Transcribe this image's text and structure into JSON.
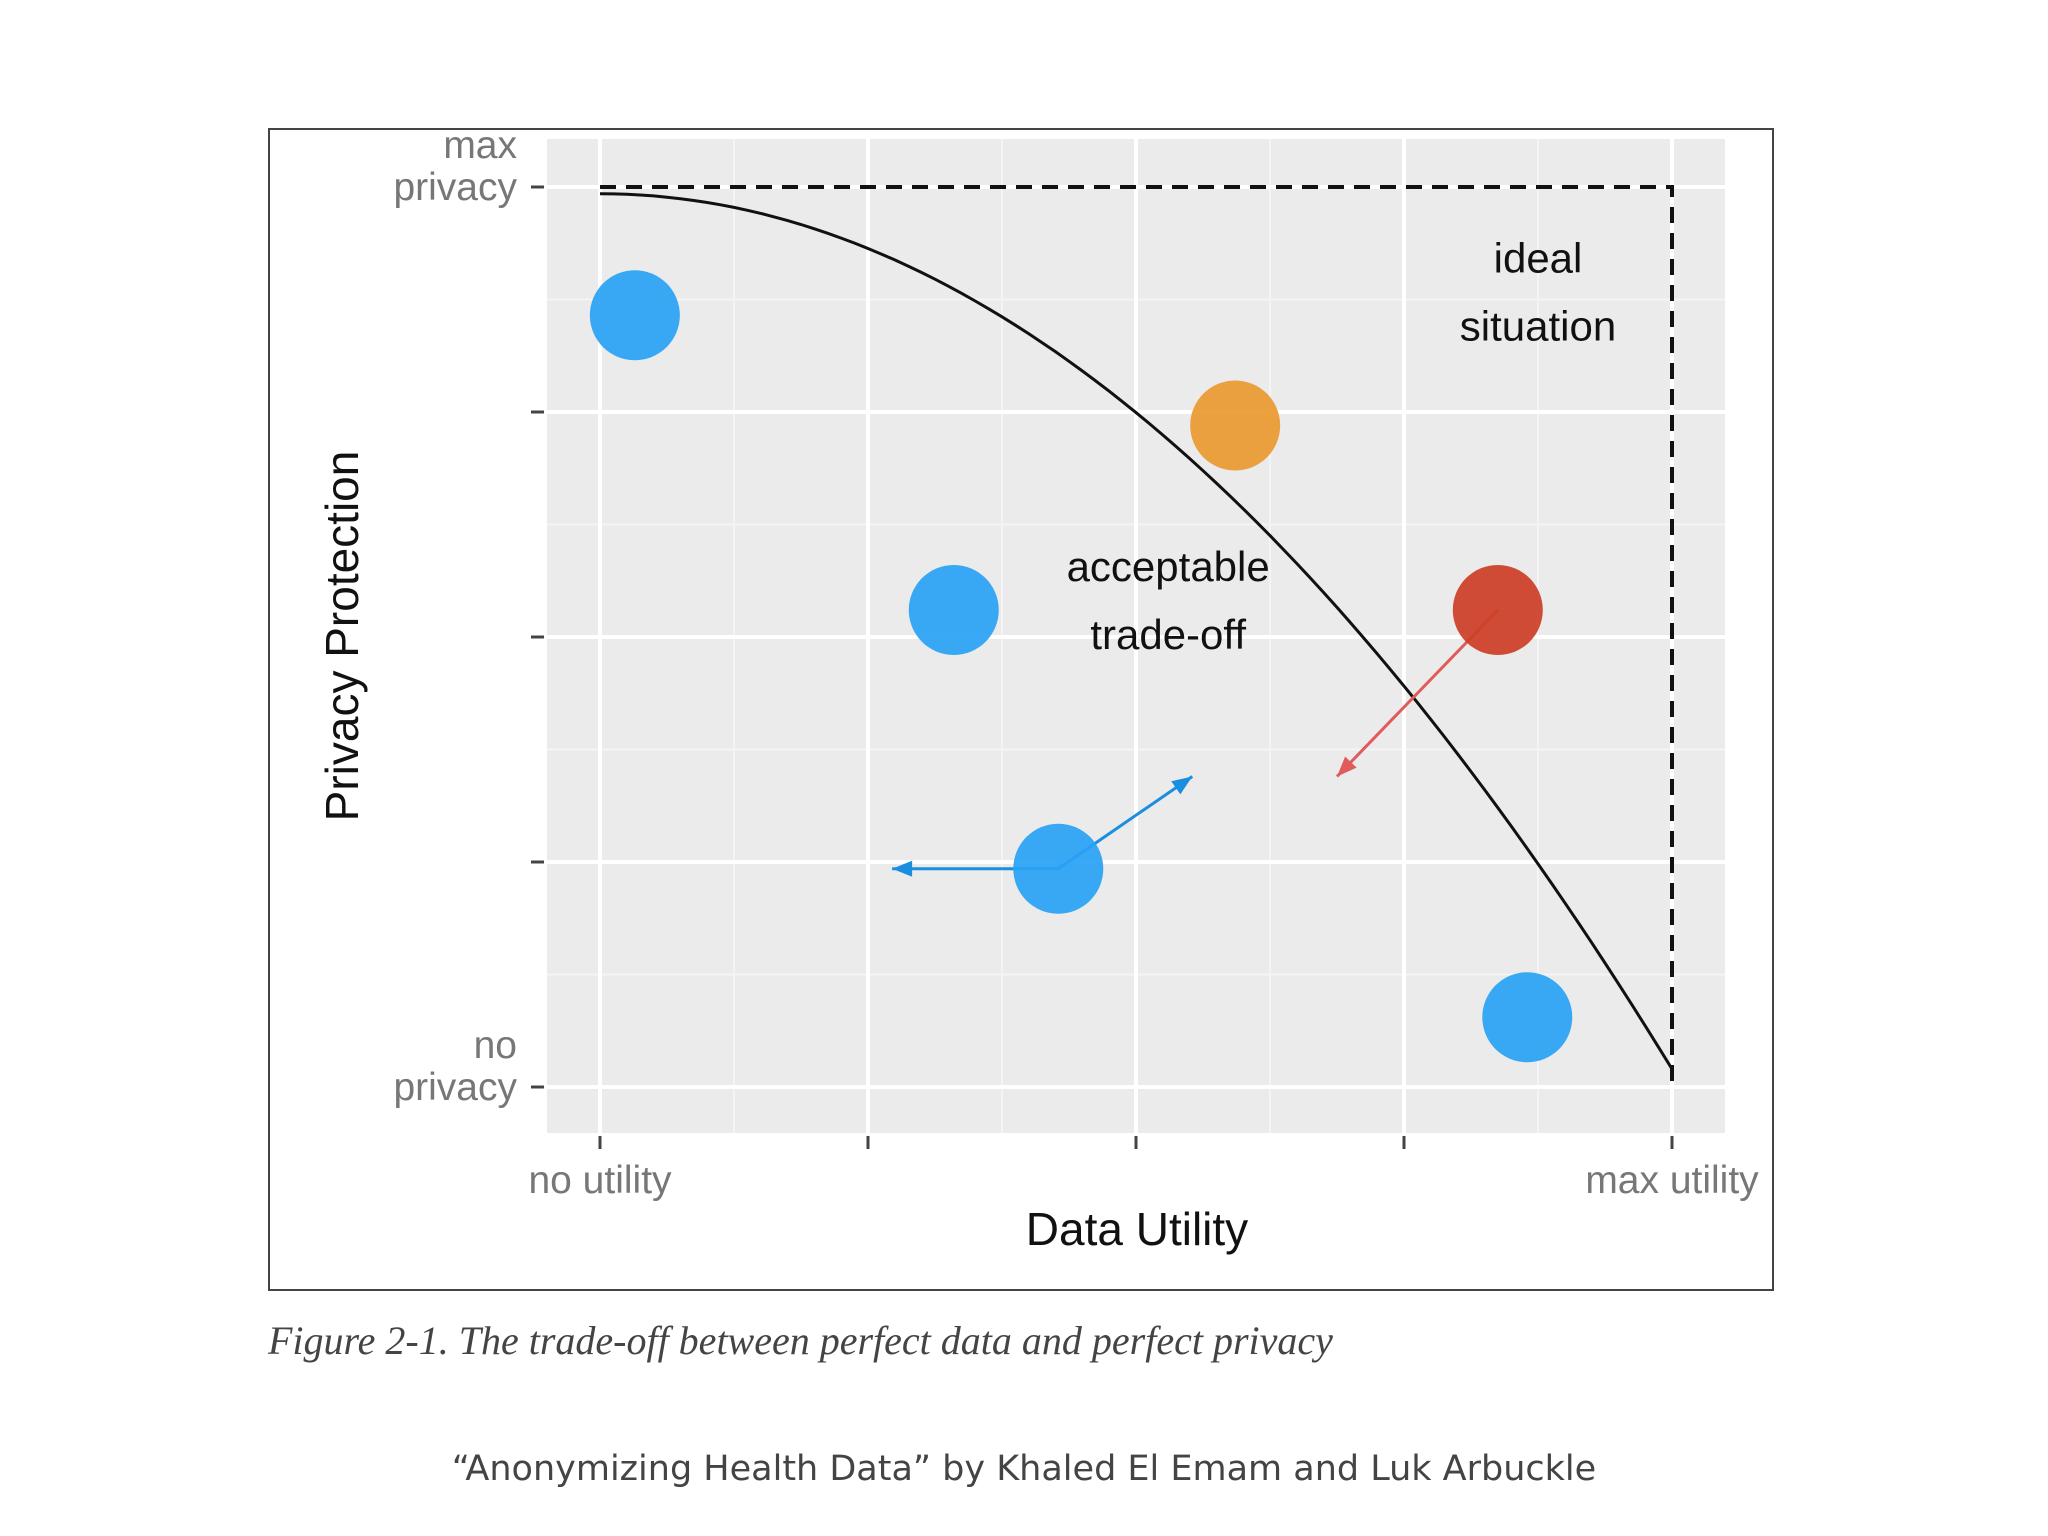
{
  "chart_data": {
    "type": "scatter",
    "xlabel": "Data Utility",
    "ylabel": "Privacy Protection",
    "xlim": [
      0,
      4
    ],
    "ylim": [
      0,
      4
    ],
    "grid": true,
    "x_ticks": [
      {
        "value": 0,
        "label": "no utility"
      },
      {
        "value": 1,
        "label": ""
      },
      {
        "value": 2,
        "label": ""
      },
      {
        "value": 3,
        "label": ""
      },
      {
        "value": 4,
        "label": "max utility"
      }
    ],
    "y_ticks": [
      {
        "value": 0,
        "label": "no privacy"
      },
      {
        "value": 1,
        "label": ""
      },
      {
        "value": 2,
        "label": ""
      },
      {
        "value": 3,
        "label": ""
      },
      {
        "value": 4,
        "label": "max privacy"
      }
    ],
    "points": [
      {
        "x": 0.13,
        "y": 3.43,
        "color": "#2aa1f4"
      },
      {
        "x": 1.32,
        "y": 2.12,
        "color": "#2aa1f4"
      },
      {
        "x": 1.71,
        "y": 0.97,
        "color": "#2aa1f4"
      },
      {
        "x": 2.37,
        "y": 2.94,
        "color": "#eb9a33"
      },
      {
        "x": 3.35,
        "y": 2.12,
        "color": "#cd3e27"
      },
      {
        "x": 3.46,
        "y": 0.31,
        "color": "#2aa1f4"
      }
    ],
    "arrows": [
      {
        "from": [
          1.71,
          0.97
        ],
        "to": [
          1.09,
          0.97
        ],
        "color": "#1a8fe0"
      },
      {
        "from": [
          1.71,
          0.97
        ],
        "to": [
          2.21,
          1.38
        ],
        "color": "#1a8fe0"
      },
      {
        "from": [
          3.35,
          2.12
        ],
        "to": [
          2.75,
          1.38
        ],
        "color": "#e15b5b"
      }
    ],
    "frontier": {
      "x_start": 0,
      "x_end": 4,
      "y_max": 3.97,
      "y_min": 0.08
    },
    "ideal_bound": {
      "x": 4,
      "y": 4
    },
    "annotations": [
      {
        "text": "ideal\nsituation",
        "x": 3.5,
        "y": 3.62
      },
      {
        "text": "acceptable\ntrade-off",
        "x": 2.12,
        "y": 2.25
      }
    ]
  },
  "caption": "Figure 2-1. The trade-off between perfect data and perfect privacy",
  "credit": "“Anonymizing Health Data” by Khaled El Emam and Luk Arbuckle"
}
